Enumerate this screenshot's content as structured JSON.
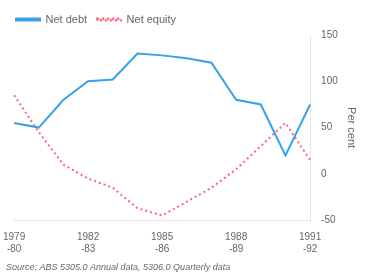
{
  "chart_data": {
    "type": "line",
    "y_label": "Per cent",
    "source": "Source: ABS 5305.0 Annual data, 5306.0 Quarterly data",
    "categories": [
      "1979\n-80",
      null,
      null,
      "1982\n-83",
      null,
      null,
      "1985\n-86",
      null,
      null,
      "1988\n-89",
      null,
      null,
      "1991\n-92"
    ],
    "series": [
      {
        "name": "Net debt",
        "line_style": "solid",
        "values": [
          55,
          50,
          80,
          100,
          102,
          130,
          128,
          125,
          120,
          80,
          75,
          20,
          75
        ]
      },
      {
        "name": "Net equity",
        "line_style": "dotted",
        "values": [
          85,
          45,
          10,
          -5,
          -15,
          -37,
          -45,
          -30,
          -15,
          5,
          30,
          55,
          15
        ]
      }
    ],
    "ylim": [
      -50,
      150
    ],
    "yticks": [
      -50,
      0,
      50,
      100,
      150
    ],
    "grid": false,
    "legend": "upper left"
  }
}
